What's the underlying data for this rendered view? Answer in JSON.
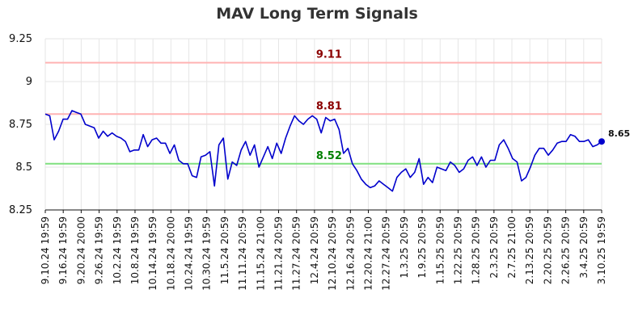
{
  "chart_data": {
    "type": "line",
    "title": "MAV Long Term Signals",
    "xlabel": "",
    "ylabel": "",
    "ylim": [
      8.25,
      9.25
    ],
    "yticks": [
      "8.25",
      "8.5",
      "8.75",
      "9",
      "9.25"
    ],
    "grid": true,
    "x_tick_labels": [
      "9.10.24 19:59",
      "9.16.24 19:59",
      "9.20.24 20:00",
      "9.26.24 19:59",
      "10.2.24 19:59",
      "10.8.24 19:59",
      "10.14.24 19:59",
      "10.18.24 20:00",
      "10.24.24 19:59",
      "10.30.24 19:59",
      "11.5.24 20:59",
      "11.11.24 20:59",
      "11.15.24 21:00",
      "11.21.24 20:59",
      "11.27.24 20:59",
      "12.4.24 20:59",
      "12.10.24 20:59",
      "12.16.24 20:59",
      "12.20.24 21:00",
      "12.27.24 20:59",
      "1.3.25 20:59",
      "1.9.25 20:59",
      "1.15.25 20:59",
      "1.22.25 20:59",
      "1.28.25 20:59",
      "2.3.25 20:59",
      "2.7.25 21:00",
      "2.13.25 20:59",
      "2.20.25 20:59",
      "2.26.25 20:59",
      "3.4.25 20:59",
      "3.10.25 19:59"
    ],
    "series": [
      {
        "color": "#0000cc",
        "values": [
          8.81,
          8.8,
          8.66,
          8.71,
          8.78,
          8.78,
          8.83,
          8.82,
          8.81,
          8.75,
          8.74,
          8.73,
          8.67,
          8.71,
          8.68,
          8.7,
          8.68,
          8.67,
          8.65,
          8.59,
          8.6,
          8.6,
          8.69,
          8.62,
          8.66,
          8.67,
          8.64,
          8.64,
          8.58,
          8.63,
          8.54,
          8.52,
          8.52,
          8.45,
          8.44,
          8.56,
          8.57,
          8.59,
          8.39,
          8.63,
          8.67,
          8.43,
          8.53,
          8.51,
          8.6,
          8.65,
          8.57,
          8.63,
          8.5,
          8.56,
          8.62,
          8.55,
          8.64,
          8.58,
          8.67,
          8.74,
          8.8,
          8.77,
          8.75,
          8.78,
          8.8,
          8.78,
          8.7,
          8.79,
          8.77,
          8.78,
          8.72,
          8.58,
          8.61,
          8.52,
          8.48,
          8.43,
          8.4,
          8.38,
          8.39,
          8.42,
          8.4,
          8.38,
          8.36,
          8.44,
          8.47,
          8.49,
          8.44,
          8.47,
          8.55,
          8.4,
          8.44,
          8.41,
          8.5,
          8.49,
          8.48,
          8.53,
          8.51,
          8.47,
          8.49,
          8.54,
          8.56,
          8.51,
          8.56,
          8.5,
          8.54,
          8.54,
          8.63,
          8.66,
          8.61,
          8.55,
          8.53,
          8.42,
          8.44,
          8.5,
          8.57,
          8.61,
          8.61,
          8.57,
          8.6,
          8.64,
          8.65,
          8.65,
          8.69,
          8.68,
          8.65,
          8.65,
          8.66,
          8.62,
          8.63,
          8.65
        ]
      }
    ],
    "levels": [
      {
        "value": 9.11,
        "label": "9.11",
        "line_color": "#ffb3b3",
        "label_color": "#8b0000"
      },
      {
        "value": 8.81,
        "label": "8.81",
        "line_color": "#ffb3b3",
        "label_color": "#8b0000"
      },
      {
        "value": 8.52,
        "label": "8.52",
        "line_color": "#7fe07f",
        "label_color": "#007f00"
      }
    ],
    "last_value_label": "8.65"
  }
}
